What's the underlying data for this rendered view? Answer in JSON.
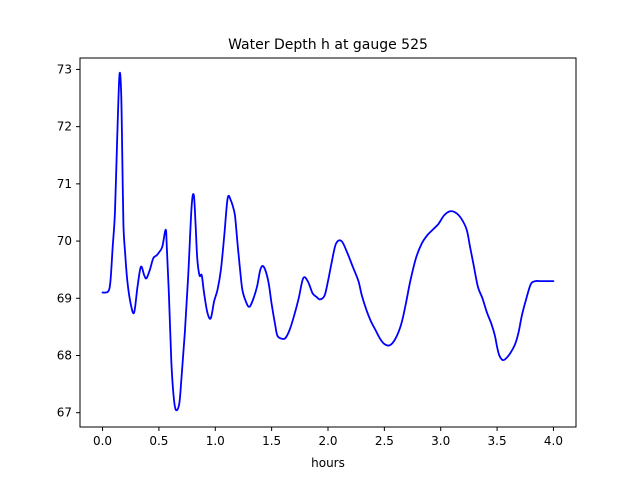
{
  "chart_data": {
    "type": "line",
    "title": "Water Depth h at gauge 525",
    "xlabel": "hours",
    "ylabel": "",
    "xlim": [
      -0.2,
      4.2
    ],
    "ylim": [
      66.75,
      73.2
    ],
    "xticks": [
      0.0,
      0.5,
      1.0,
      1.5,
      2.0,
      2.5,
      3.0,
      3.5,
      4.0
    ],
    "xtick_labels": [
      "0.0",
      "0.5",
      "1.0",
      "1.5",
      "2.0",
      "2.5",
      "3.0",
      "3.5",
      "4.0"
    ],
    "yticks": [
      67,
      68,
      69,
      70,
      71,
      72,
      73
    ],
    "ytick_labels": [
      "67",
      "68",
      "69",
      "70",
      "71",
      "72",
      "73"
    ],
    "grid": false,
    "legend": "none",
    "series": [
      {
        "color": "#0000ff",
        "x": [
          0.0,
          0.05,
          0.07,
          0.09,
          0.11,
          0.13,
          0.15,
          0.165,
          0.175,
          0.185,
          0.2,
          0.22,
          0.25,
          0.28,
          0.31,
          0.34,
          0.37,
          0.39,
          0.42,
          0.45,
          0.48,
          0.5,
          0.53,
          0.56,
          0.57,
          0.59,
          0.61,
          0.63,
          0.65,
          0.68,
          0.7,
          0.73,
          0.76,
          0.79,
          0.81,
          0.825,
          0.84,
          0.86,
          0.88,
          0.9,
          0.93,
          0.96,
          0.99,
          1.02,
          1.05,
          1.08,
          1.11,
          1.14,
          1.17,
          1.18,
          1.2,
          1.22,
          1.24,
          1.27,
          1.3,
          1.33,
          1.37,
          1.4,
          1.43,
          1.47,
          1.5,
          1.53,
          1.55,
          1.58,
          1.62,
          1.66,
          1.7,
          1.74,
          1.78,
          1.82,
          1.86,
          1.88,
          1.9,
          1.93,
          1.97,
          2.0,
          2.03,
          2.07,
          2.12,
          2.17,
          2.22,
          2.27,
          2.3,
          2.34,
          2.38,
          2.42,
          2.46,
          2.5,
          2.55,
          2.6,
          2.65,
          2.69,
          2.73,
          2.78,
          2.83,
          2.88,
          2.93,
          2.98,
          3.03,
          3.08,
          3.13,
          3.18,
          3.23,
          3.26,
          3.29,
          3.33,
          3.37,
          3.41,
          3.45,
          3.48,
          3.5,
          3.52,
          3.55,
          3.58,
          3.62,
          3.66,
          3.69,
          3.72,
          3.76,
          3.8,
          3.84,
          3.88,
          3.92,
          3.95,
          3.98,
          4.0
        ],
        "y": [
          69.1,
          69.12,
          69.3,
          69.9,
          70.5,
          71.8,
          72.9,
          72.6,
          71.5,
          70.3,
          69.8,
          69.3,
          68.9,
          68.75,
          69.2,
          69.55,
          69.4,
          69.35,
          69.5,
          69.7,
          69.75,
          69.8,
          69.9,
          70.2,
          69.9,
          69.0,
          67.9,
          67.3,
          67.05,
          67.15,
          67.6,
          68.4,
          69.4,
          70.6,
          70.8,
          70.3,
          69.7,
          69.4,
          69.4,
          69.1,
          68.75,
          68.65,
          68.95,
          69.15,
          69.5,
          70.1,
          70.75,
          70.7,
          70.5,
          70.35,
          69.9,
          69.5,
          69.15,
          68.95,
          68.85,
          68.95,
          69.2,
          69.5,
          69.55,
          69.3,
          68.9,
          68.55,
          68.35,
          68.3,
          68.3,
          68.45,
          68.7,
          69.0,
          69.35,
          69.3,
          69.1,
          69.05,
          69.02,
          68.98,
          69.05,
          69.3,
          69.6,
          69.95,
          70.0,
          69.8,
          69.55,
          69.3,
          69.05,
          68.8,
          68.6,
          68.45,
          68.3,
          68.2,
          68.18,
          68.3,
          68.55,
          68.9,
          69.3,
          69.7,
          69.95,
          70.1,
          70.2,
          70.3,
          70.45,
          70.52,
          70.5,
          70.4,
          70.2,
          69.9,
          69.6,
          69.2,
          69.0,
          68.75,
          68.55,
          68.35,
          68.15,
          68.0,
          67.92,
          67.95,
          68.05,
          68.2,
          68.4,
          68.7,
          69.0,
          69.25,
          69.3,
          69.3,
          69.3,
          69.3,
          69.3,
          69.3
        ]
      }
    ]
  }
}
